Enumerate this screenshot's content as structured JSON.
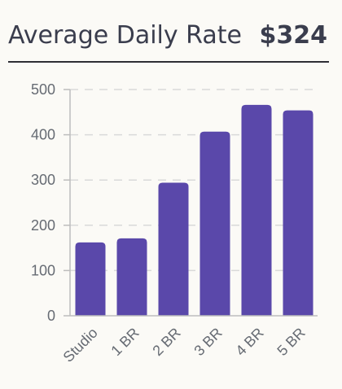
{
  "header": {
    "title": "Average Daily Rate",
    "value": "$324"
  },
  "chart_data": {
    "type": "bar",
    "categories": [
      "Studio",
      "1 BR",
      "2 BR",
      "3 BR",
      "4 BR",
      "5 BR"
    ],
    "values": [
      162,
      171,
      294,
      407,
      466,
      454
    ],
    "ylim": [
      0,
      500
    ],
    "yticks": [
      0,
      100,
      200,
      300,
      400,
      500
    ],
    "grid": true,
    "colors": {
      "bar": "#5a48aa",
      "grid": "#d9d9d9",
      "axis": "#bdbdbd"
    }
  }
}
